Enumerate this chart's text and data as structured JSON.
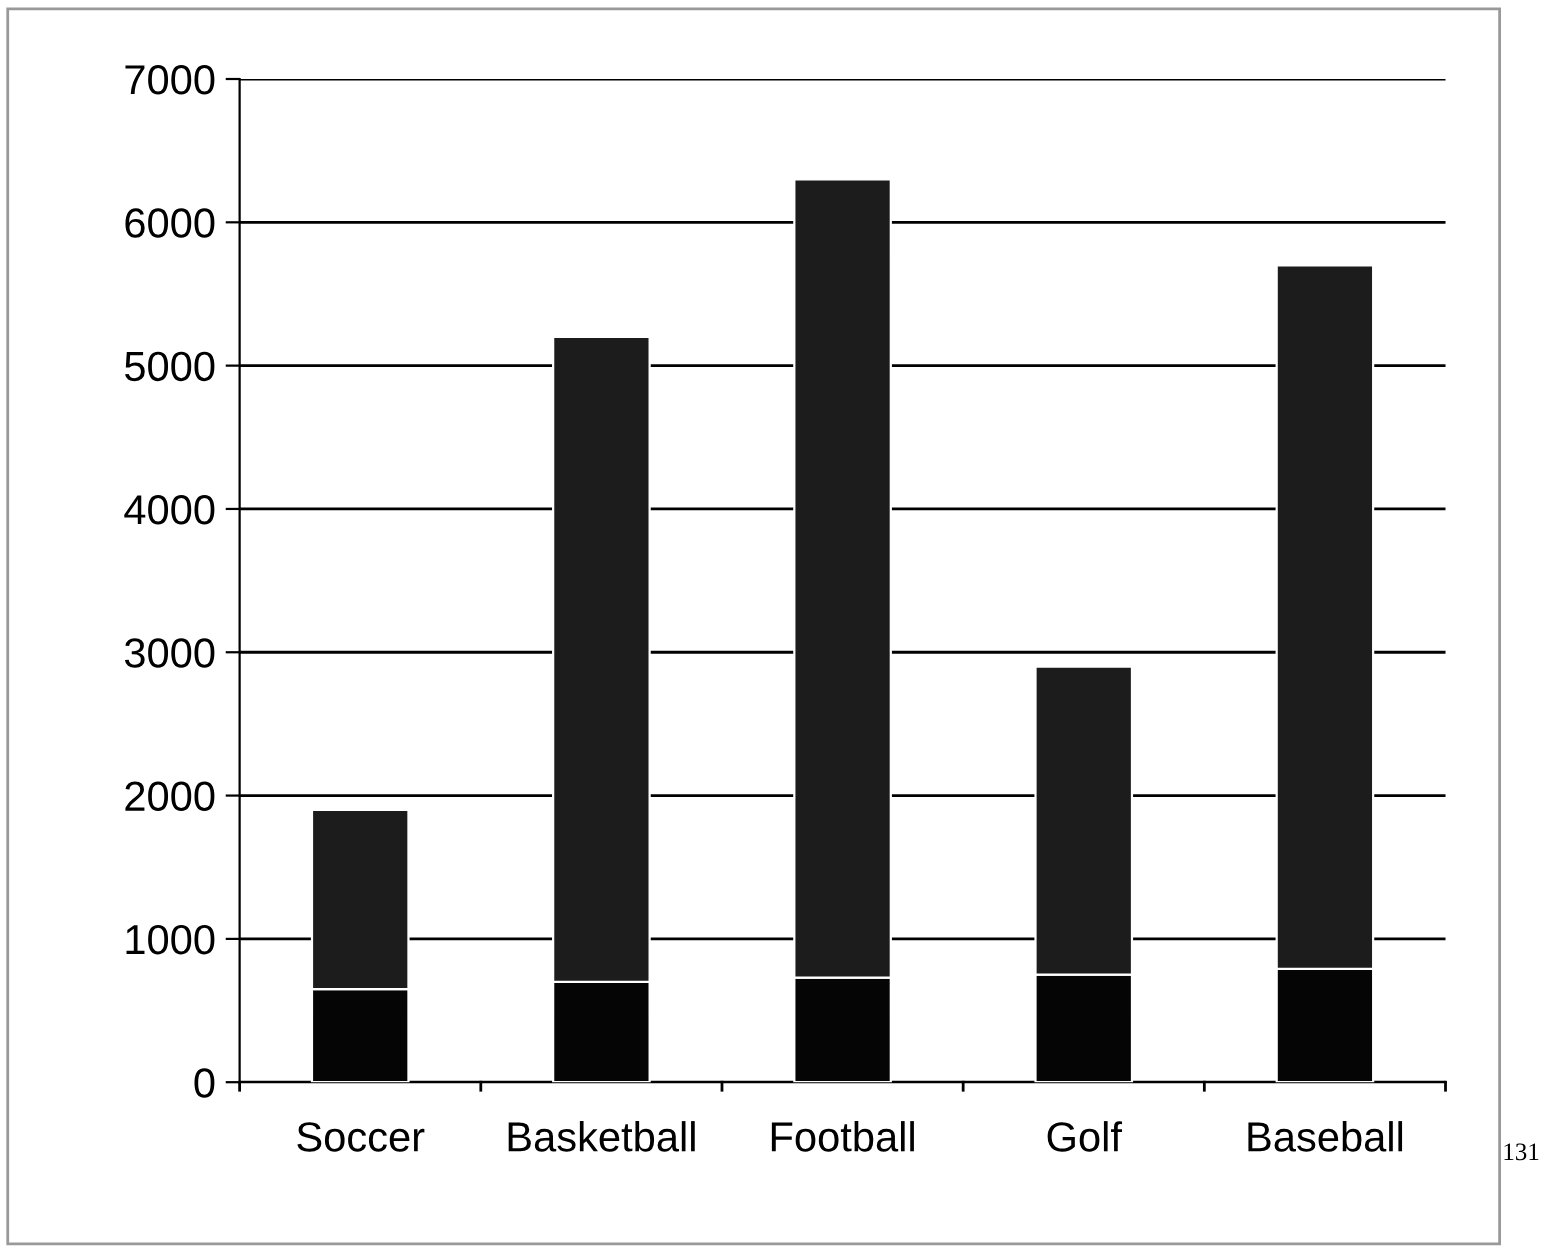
{
  "chart_data": {
    "type": "bar",
    "stacked": true,
    "categories": [
      "Soccer",
      "Basketball",
      "Football",
      "Golf",
      "Baseball"
    ],
    "series": [
      {
        "color": "#050505",
        "values": [
          650,
          700,
          730,
          750,
          790
        ]
      },
      {
        "color": "#1c1c1c",
        "values": [
          1250,
          4500,
          5570,
          2150,
          4910
        ]
      }
    ],
    "ylim": [
      0,
      7000
    ],
    "yticks": [
      0,
      1000,
      2000,
      3000,
      4000,
      5000,
      6000,
      7000
    ],
    "grid": "y",
    "annotations": [
      "131"
    ]
  }
}
